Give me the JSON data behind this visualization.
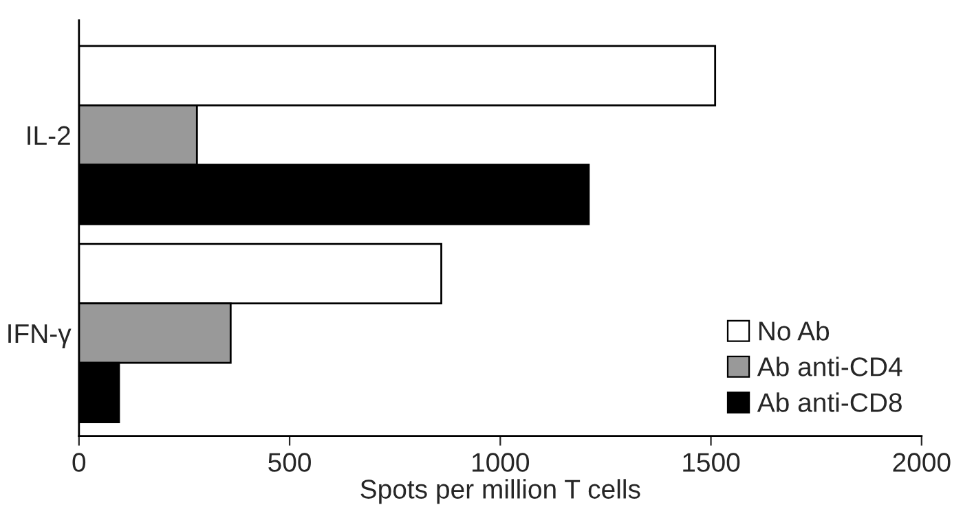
{
  "chart_data": {
    "type": "bar",
    "orientation": "horizontal",
    "xlabel": "Spots per million T cells",
    "categories": [
      "IL-2",
      "IFN-γ"
    ],
    "series": [
      {
        "name": "No Ab",
        "color": "#ffffff",
        "values": [
          1510,
          860
        ]
      },
      {
        "name": "Ab anti-CD4",
        "color": "#999999",
        "values": [
          280,
          360
        ]
      },
      {
        "name": "Ab anti-CD8",
        "color": "#000000",
        "values": [
          1210,
          95
        ]
      }
    ],
    "xlim": [
      0,
      2000
    ],
    "xticks": [
      0,
      500,
      1000,
      1500,
      2000
    ],
    "grid": false,
    "legend": "bottom right"
  }
}
